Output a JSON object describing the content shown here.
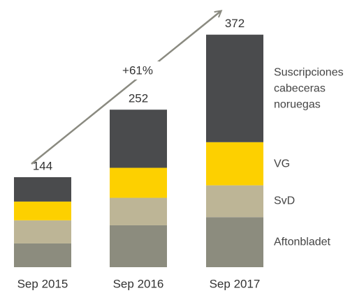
{
  "chart_data": {
    "type": "stacked-bar",
    "categories": [
      "Sep 2015",
      "Sep 2016",
      "Sep 2017"
    ],
    "series": [
      {
        "name": "Aftonbladet",
        "color": "#8c8c7e",
        "values": [
          38,
          67,
          80
        ]
      },
      {
        "name": "SvD",
        "color": "#bdb596",
        "values": [
          37,
          44,
          51
        ]
      },
      {
        "name": "VG",
        "color": "#fdd000",
        "values": [
          30,
          48,
          69
        ]
      },
      {
        "name": "Suscripciones cabeceras noruegas",
        "color": "#4a4b4d",
        "values": [
          39,
          93,
          172
        ]
      }
    ],
    "totals": [
      144,
      252,
      372
    ],
    "annotation": "+61%"
  }
}
